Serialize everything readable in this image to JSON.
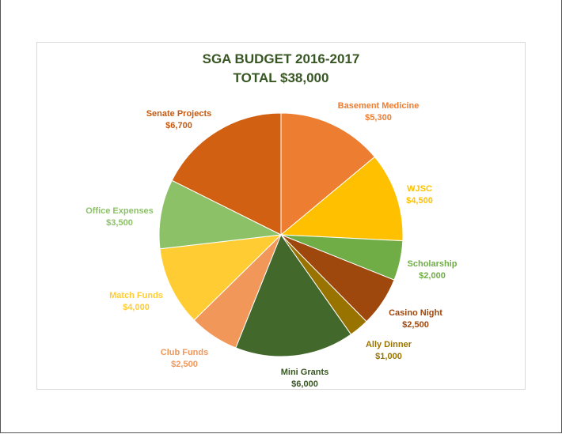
{
  "chart_data": {
    "type": "pie",
    "title": "SGA BUDGET 2016-2017",
    "subtitle": "TOTAL $38,000",
    "title_color": "#375623",
    "categories": [
      "Basement Medicine",
      "WJSC",
      "Scholarship",
      "Casino Night",
      "Ally Dinner",
      "Mini Grants",
      "Club Funds",
      "Match Funds",
      "Office Expenses",
      "Senate Projects"
    ],
    "values": [
      5300,
      4500,
      2000,
      2500,
      1000,
      6000,
      2500,
      4000,
      3500,
      6700
    ],
    "value_labels": [
      "$5,300",
      "$4,500",
      "$2,000",
      "$2,500",
      "$1,000",
      "$6,000",
      "$2,500",
      "$4,000",
      "$3,500",
      "$6,700"
    ],
    "colors": [
      "#ED7D31",
      "#FFC000",
      "#70AD47",
      "#9E480E",
      "#997300",
      "#43682B",
      "#F1975A",
      "#FFCD33",
      "#8CC168",
      "#D26012"
    ],
    "label_colors": [
      "#ED7D31",
      "#FFC000",
      "#70AD47",
      "#9E480E",
      "#997300",
      "#375623",
      "#F1975A",
      "#FFCD33",
      "#8CC168",
      "#C55A11"
    ],
    "legend": "none"
  }
}
